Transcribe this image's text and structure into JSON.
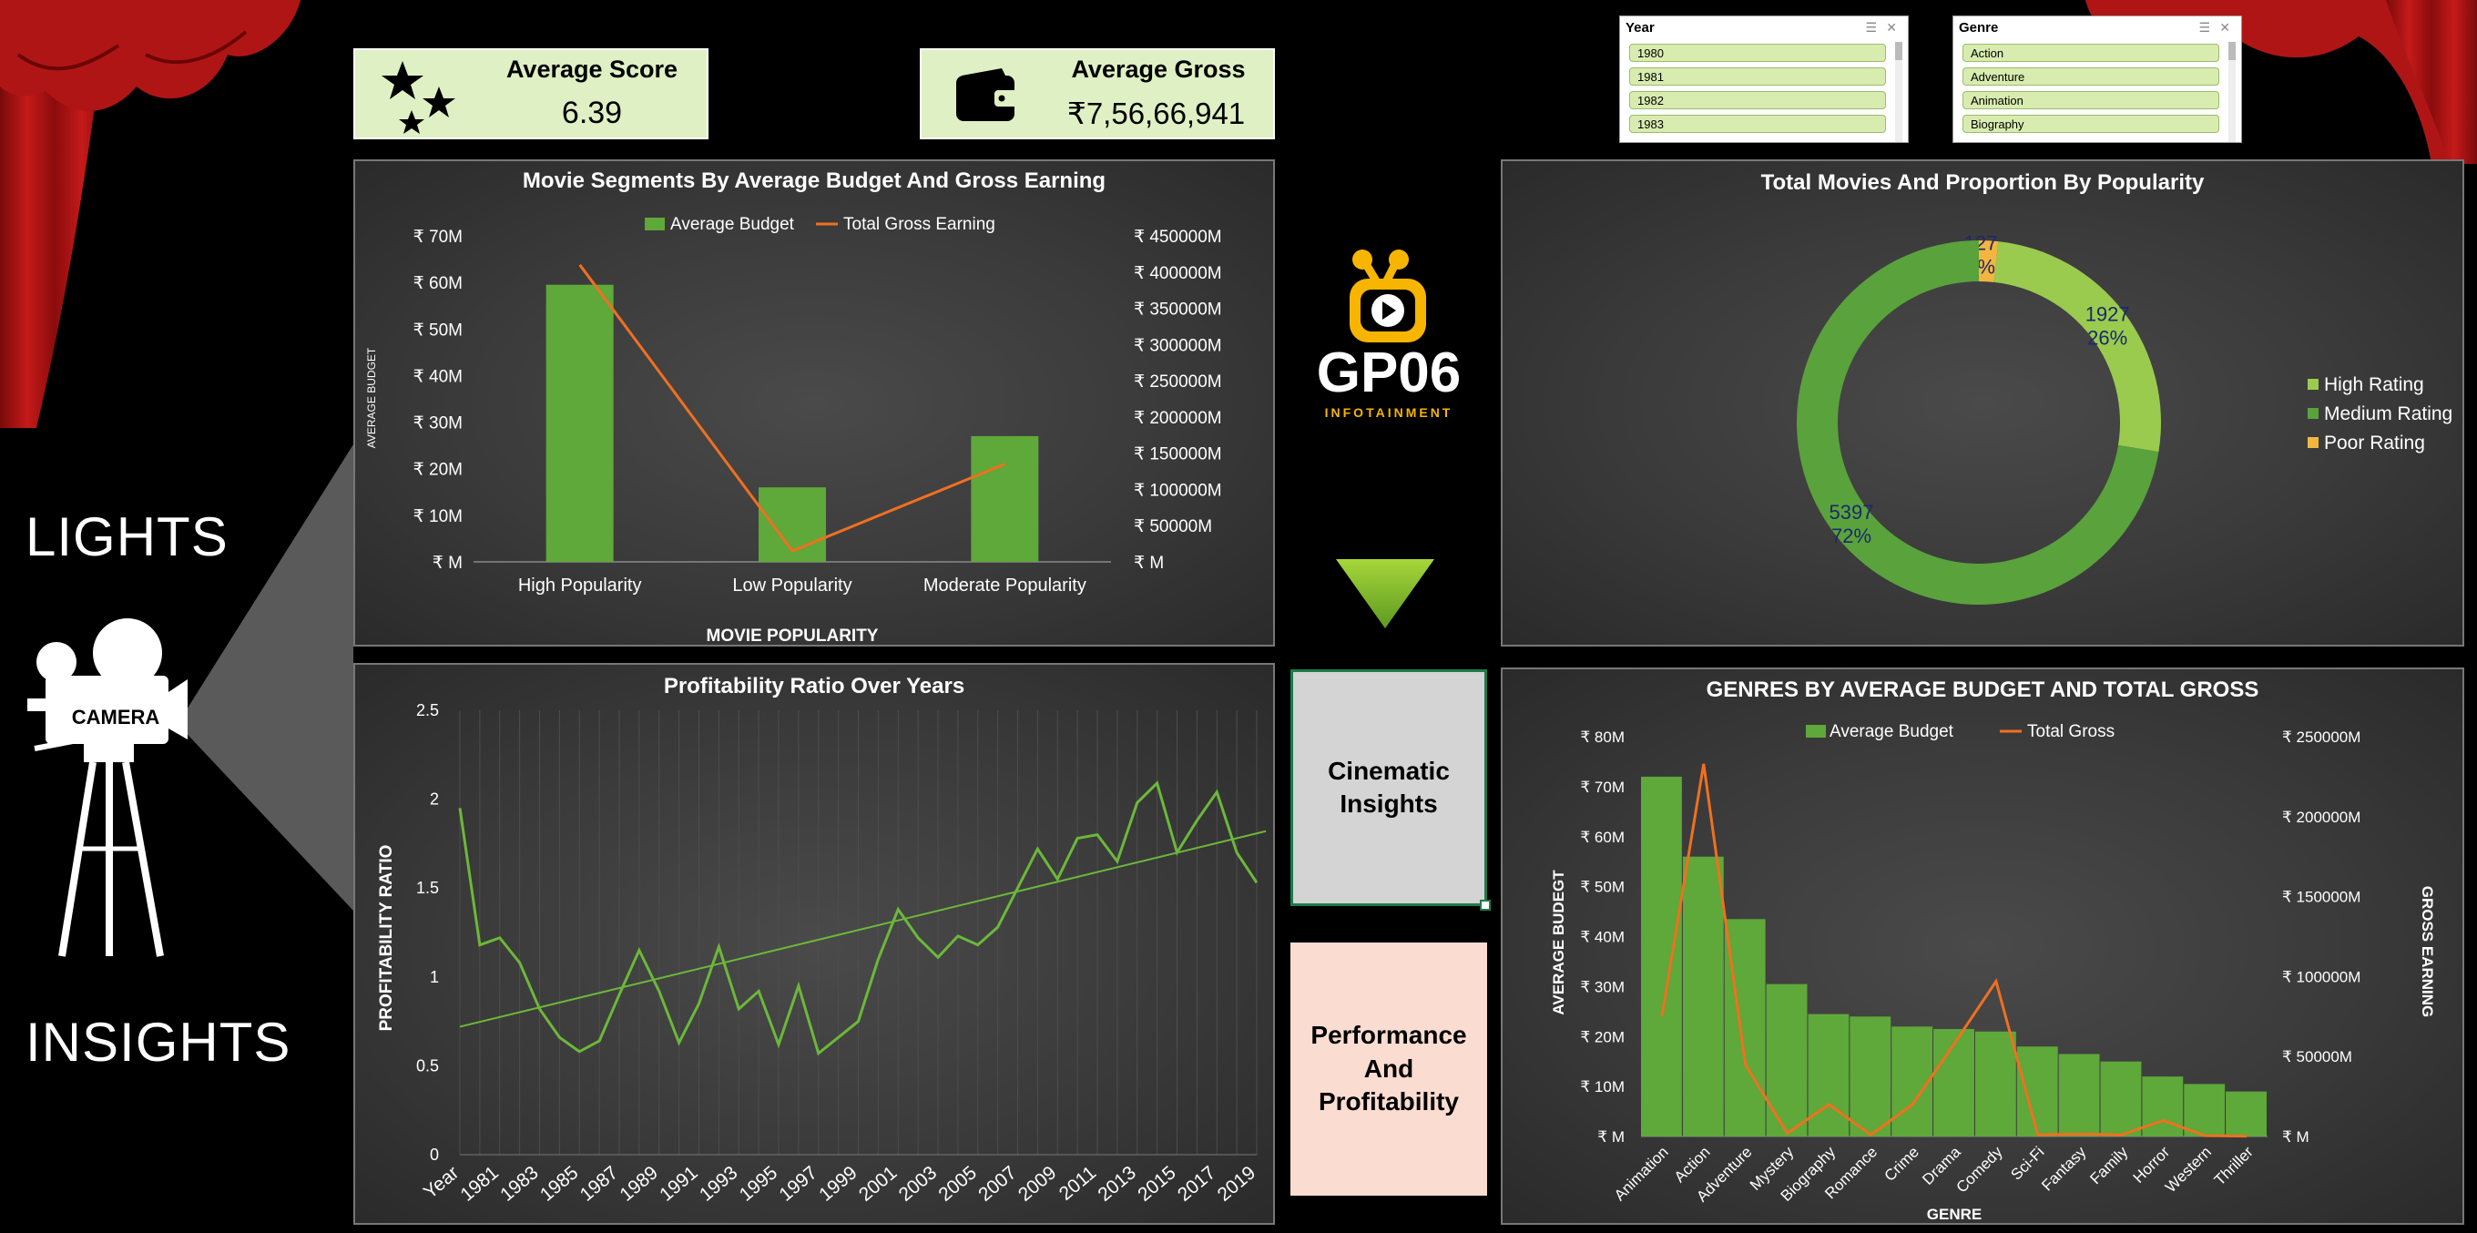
{
  "kpis": {
    "avg_score": {
      "label": "Average Score",
      "value": "6.39"
    },
    "avg_gross": {
      "label": "Average Gross",
      "value": "₹7,56,66,941"
    }
  },
  "slicers": {
    "year": {
      "title": "Year",
      "items": [
        "1980",
        "1981",
        "1982",
        "1983"
      ]
    },
    "genre": {
      "title": "Genre",
      "items": [
        "Action",
        "Adventure",
        "Animation",
        "Biography"
      ]
    }
  },
  "side": {
    "top_word": "LIGHTS",
    "bottom_word": "INSIGHTS",
    "camera_label": "CAMERA"
  },
  "logo": {
    "main": "GP06",
    "sub": "INFOTAINMENT"
  },
  "nav": {
    "cinematic": "Cinematic Insights",
    "performance": "Performance And Profitability"
  },
  "colors": {
    "bar_green": "#5fa83a",
    "line_orange": "#f07020",
    "high": "#9bcb4e",
    "medium": "#5aa23c",
    "poor": "#f2b640",
    "kpi_bg": "#dff0c4",
    "nav1_bg": "#d4d4d4",
    "nav2_bg": "#fbdcd0"
  },
  "chart_data": [
    {
      "id": "segments",
      "type": "bar",
      "title": "Movie Segments By Average Budget And Gross Earning",
      "xlabel": "MOVIE POPULARITY",
      "ylabel": "AVERAGE BUDGET",
      "categories": [
        "High Popularity",
        "Low Popularity",
        "Moderate Popularity"
      ],
      "series": [
        {
          "name": "Average Budget",
          "type": "bar",
          "axis": "left",
          "values": [
            59.5,
            16,
            27
          ]
        },
        {
          "name": "Total Gross Earning",
          "type": "line",
          "axis": "right",
          "values": [
            410000,
            15000,
            135000
          ]
        }
      ],
      "ylim": [
        0,
        70
      ],
      "y2lim": [
        0,
        450000
      ],
      "yticks": [
        "₹ M",
        "₹ 10M",
        "₹ 20M",
        "₹ 30M",
        "₹ 40M",
        "₹ 50M",
        "₹ 60M",
        "₹ 70M"
      ],
      "y2ticks": [
        "₹ M",
        "₹ 50000M",
        "₹ 100000M",
        "₹ 150000M",
        "₹ 200000M",
        "₹ 250000M",
        "₹ 300000M",
        "₹ 350000M",
        "₹ 400000M",
        "₹ 450000M"
      ],
      "legend": "top"
    },
    {
      "id": "popularity",
      "type": "pie",
      "title": "Total Movies And Proportion By Popularity",
      "slices": [
        {
          "name": "Poor Rating",
          "value": 127,
          "label": "127",
          "pct": "2%"
        },
        {
          "name": "High Rating",
          "value": 1927,
          "label": "1927",
          "pct": "26%"
        },
        {
          "name": "Medium Rating",
          "value": 5397,
          "label": "5397",
          "pct": "72%"
        }
      ],
      "legend_order": [
        "High Rating",
        "Medium Rating",
        "Poor Rating"
      ],
      "legend": "right"
    },
    {
      "id": "profitability",
      "type": "line",
      "title": "Profitability Ratio Over Years",
      "ylabel": "PROFITABILITY RATIO",
      "x": [
        "1980",
        "1981",
        "1982",
        "1983",
        "1984",
        "1985",
        "1986",
        "1987",
        "1988",
        "1989",
        "1990",
        "1991",
        "1992",
        "1993",
        "1994",
        "1995",
        "1996",
        "1997",
        "1998",
        "1999",
        "2000",
        "2001",
        "2002",
        "2003",
        "2004",
        "2005",
        "2006",
        "2007",
        "2008",
        "2009",
        "2010",
        "2011",
        "2012",
        "2013",
        "2014",
        "2015",
        "2016",
        "2017",
        "2018",
        "2019",
        "2020"
      ],
      "values": [
        1.95,
        1.18,
        1.22,
        1.08,
        0.82,
        0.66,
        0.58,
        0.64,
        0.9,
        1.15,
        0.92,
        0.63,
        0.85,
        1.17,
        0.82,
        0.92,
        0.62,
        0.95,
        0.57,
        0.66,
        0.75,
        1.1,
        1.38,
        1.22,
        1.11,
        1.23,
        1.18,
        1.28,
        1.5,
        1.72,
        1.55,
        1.78,
        1.8,
        1.65,
        1.98,
        2.09,
        1.7,
        1.88,
        2.04,
        1.7,
        1.53
      ],
      "xtick_labels": [
        "Year",
        "1981",
        "1983",
        "1985",
        "1987",
        "1989",
        "1991",
        "1993",
        "1995",
        "1997",
        "1999",
        "2001",
        "2003",
        "2005",
        "2007",
        "2009",
        "2011",
        "2013",
        "2015",
        "2017",
        "2019"
      ],
      "trendline": [
        0.72,
        1.82
      ],
      "ylim": [
        0,
        2.5
      ],
      "yticks": [
        "0",
        "0.5",
        "1",
        "1.5",
        "2",
        "2.5"
      ]
    },
    {
      "id": "genres",
      "type": "bar",
      "title": "GENRES BY AVERAGE BUDGET AND TOTAL GROSS",
      "xlabel": "GENRE",
      "ylabel": "AVERAGE BUDEGT",
      "y2label": "GROSS EARNING",
      "categories": [
        "Animation",
        "Action",
        "Adventure",
        "Mystery",
        "Biography",
        "Romance",
        "Crime",
        "Drama",
        "Comedy",
        "Sci-Fi",
        "Fantasy",
        "Family",
        "Horror",
        "Western",
        "Thriller"
      ],
      "series": [
        {
          "name": "Average Budget",
          "type": "bar",
          "axis": "left",
          "values": [
            72,
            56,
            43.5,
            30.5,
            24.5,
            24,
            22,
            21.5,
            21,
            18,
            16.5,
            15,
            12,
            10.5,
            9
          ]
        },
        {
          "name": "Total Gross",
          "type": "line",
          "axis": "right",
          "values": [
            75000,
            233000,
            45000,
            2000,
            20000,
            1000,
            20000,
            58000,
            97000,
            1000,
            1500,
            1000,
            10000,
            500,
            200
          ]
        }
      ],
      "ylim": [
        0,
        80
      ],
      "y2lim": [
        0,
        250000
      ],
      "yticks": [
        "₹ M",
        "₹ 10M",
        "₹ 20M",
        "₹ 30M",
        "₹ 40M",
        "₹ 50M",
        "₹ 60M",
        "₹ 70M",
        "₹ 80M"
      ],
      "y2ticks": [
        "₹ M",
        "₹ 50000M",
        "₹ 100000M",
        "₹ 150000M",
        "₹ 200000M",
        "₹ 250000M"
      ],
      "legend": "top"
    }
  ]
}
